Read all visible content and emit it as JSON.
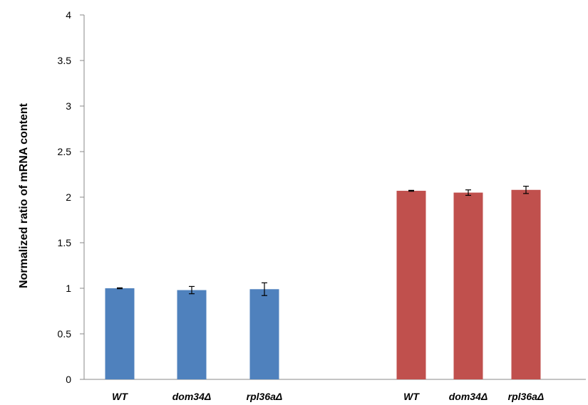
{
  "chart_data": {
    "type": "bar",
    "title": "",
    "xlabel": "",
    "ylabel": "Normalized ratio of mRNA content",
    "ylim": [
      0,
      4
    ],
    "yticks": [
      "0",
      "0.5",
      "1",
      "1.5",
      "2",
      "2.5",
      "3",
      "3.5",
      "4"
    ],
    "grid": false,
    "legend": "none",
    "groups": [
      {
        "color": "#4F81BD",
        "bars": [
          {
            "category": "WT",
            "value": 1.0,
            "error": 0.005
          },
          {
            "category": "dom34Δ",
            "value": 0.98,
            "error": 0.04
          },
          {
            "category": "rpl36aΔ",
            "value": 0.99,
            "error": 0.07
          }
        ]
      },
      {
        "color": "#C0504D",
        "bars": [
          {
            "category": "WT",
            "value": 2.07,
            "error": 0.005
          },
          {
            "category": "dom34Δ",
            "value": 2.05,
            "error": 0.03
          },
          {
            "category": "rpl36aΔ",
            "value": 2.08,
            "error": 0.04
          }
        ]
      }
    ]
  }
}
